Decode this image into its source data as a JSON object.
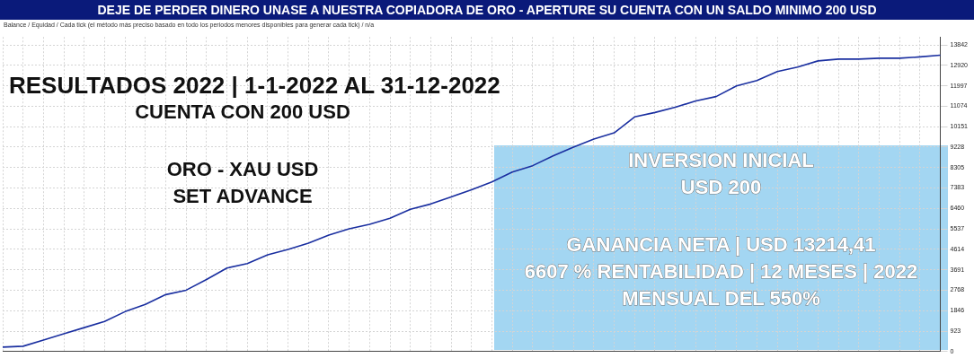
{
  "chart_data": {
    "type": "line",
    "title": "DEJE DE PERDER DINERO UNASE A NUESTRA COPIADORA DE ORO - APERTURE SU CUENTA CON UN SALDO MINIMO 200 USD",
    "subtitle": "Balance / Equidad / Cada tick (el método más preciso basado en todo los periodos menores disponibles para generar cada tick) / n/a",
    "categories": [
      null,
      null,
      null,
      null,
      null,
      null,
      null,
      null,
      null,
      null,
      null,
      null,
      null,
      null,
      null,
      null,
      null,
      null,
      null,
      null,
      null,
      null,
      null,
      null,
      null,
      null,
      null,
      null,
      null,
      null,
      null,
      null,
      null,
      null,
      null,
      null,
      null,
      null,
      null,
      null,
      null,
      null,
      null,
      null,
      null,
      null,
      null
    ],
    "series": [
      {
        "color": "#1a2fa0",
        "values": [
          200,
          240,
          520,
          800,
          1080,
          1360,
          1800,
          2130,
          2570,
          2770,
          3250,
          3770,
          3970,
          4370,
          4610,
          4890,
          5260,
          5540,
          5740,
          6020,
          6420,
          6660,
          6980,
          7300,
          7660,
          8100,
          8390,
          8830,
          9230,
          9590,
          9870,
          10590,
          10790,
          11030,
          11310,
          11510,
          11990,
          12230,
          12640,
          12840,
          13120,
          13200,
          13200,
          13240,
          13240,
          13300,
          13380
        ]
      }
    ],
    "ylim": [
      0,
      14200
    ],
    "yticks": [
      0,
      923,
      1846,
      2768,
      3691,
      4614,
      5537,
      6460,
      7383,
      8305,
      9228,
      10151,
      11074,
      11997,
      12920,
      13842
    ],
    "grid": true,
    "annotations": [
      "RESULTADOS 2022 | 1-1-2022 AL 31-12-2022",
      "CUENTA CON 200 USD",
      "ORO - XAU USD",
      "SET ADVANCE",
      "INVERSION INICIAL",
      "USD 200",
      "GANANCIA NETA | USD 13214,41",
      "6607 % RENTABILIDAD | 12 MESES | 2022",
      "MENSUAL DEL 550%"
    ]
  }
}
